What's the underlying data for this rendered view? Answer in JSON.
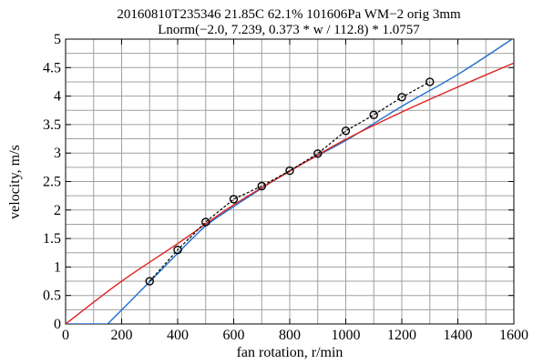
{
  "chart_data": {
    "type": "line",
    "title": "20160810T235346 21.85C 62.1% 101606Pa WM−2 orig 3mm",
    "subtitle": "Lnorm(−2.0, 7.239, 0.373 * w / 112.8) * 1.0757",
    "xlabel": "fan rotation, r/min",
    "ylabel": "velocity, m/s",
    "xlim": [
      0,
      1600
    ],
    "ylim": [
      0,
      5
    ],
    "x_ticks": [
      0,
      200,
      400,
      600,
      800,
      1000,
      1200,
      1400,
      1600
    ],
    "x_tick_labels": [
      "0",
      "200",
      "400",
      "600",
      "800",
      "1000",
      "1200",
      "1400",
      "1600"
    ],
    "y_ticks": [
      0,
      0.5,
      1,
      1.5,
      2,
      2.5,
      3,
      3.5,
      4,
      4.5,
      5
    ],
    "y_tick_labels": [
      "0",
      "0.5",
      "1",
      "1.5",
      "2",
      "2.5",
      "3",
      "3.5",
      "4",
      "4.5",
      "5"
    ],
    "grid": true,
    "series": [
      {
        "kind": "points",
        "style": "dashed-with-circle-markers",
        "color": "#000000",
        "x": [
          300,
          400,
          500,
          600,
          700,
          800,
          900,
          1000,
          1100,
          1200,
          1300
        ],
        "y": [
          0.75,
          1.3,
          1.79,
          2.19,
          2.42,
          2.69,
          2.99,
          3.39,
          3.67,
          3.98,
          4.25
        ]
      },
      {
        "kind": "curve",
        "color": "#1f6fd0",
        "x": [
          0,
          150,
          300,
          400,
          500,
          600,
          800,
          1000,
          1200,
          1400,
          1600
        ],
        "y": [
          0,
          0,
          0.74,
          1.24,
          1.72,
          2.06,
          2.69,
          3.22,
          3.82,
          4.38,
          5.02
        ]
      },
      {
        "kind": "curve",
        "color": "#e02020",
        "x": [
          0,
          200,
          400,
          600,
          800,
          1000,
          1200,
          1400,
          1600
        ],
        "y": [
          0,
          0.75,
          1.41,
          2.09,
          2.68,
          3.24,
          3.72,
          4.16,
          4.58
        ]
      }
    ]
  }
}
